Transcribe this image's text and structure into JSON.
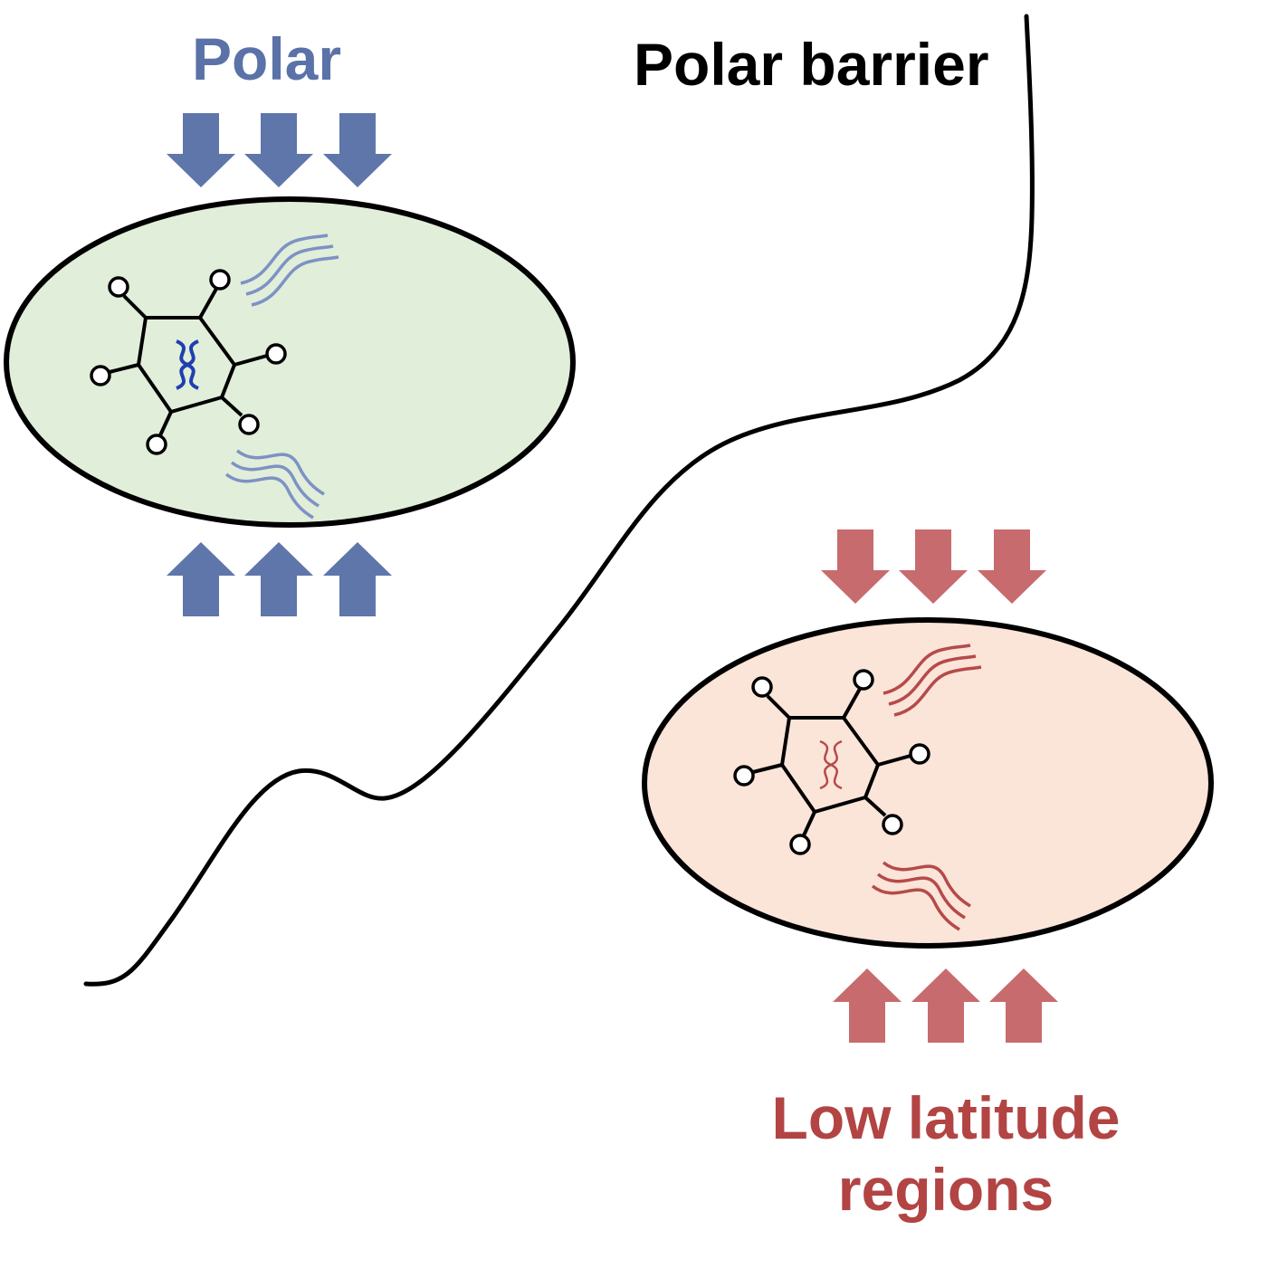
{
  "labels": {
    "polar": "Polar",
    "polar_barrier": "Polar barrier",
    "low_latitude_line1": "Low latitude",
    "low_latitude_line2": "regions"
  },
  "colors": {
    "polar_text": "#5a72a8",
    "polar_arrow": "#5e76aa",
    "polar_cell_fill": "#e1eed9",
    "polar_wave": "#7d92c4",
    "polar_dna": "#1f3fb0",
    "low_text": "#b24444",
    "low_arrow": "#c86b6e",
    "low_cell_fill": "#fbe4d8",
    "low_wave": "#b54a4a",
    "low_dna": "#b54a4a",
    "outline": "#000000",
    "barrier_text": "#000000"
  },
  "icons": {
    "down_arrow": "down-arrow-icon",
    "up_arrow": "up-arrow-icon",
    "virus": "virus-icon",
    "dna": "dna-icon",
    "wave": "wave-icon"
  }
}
